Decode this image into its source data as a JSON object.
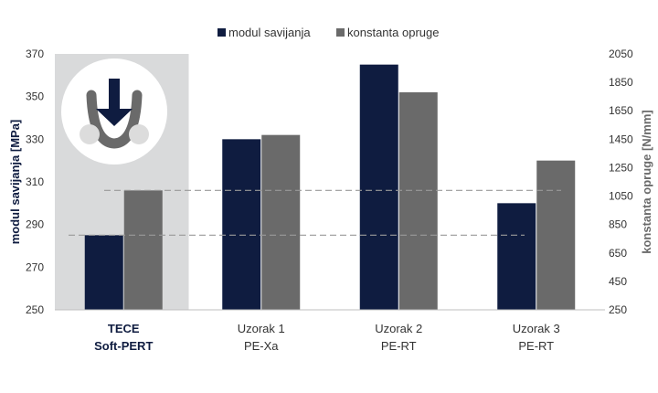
{
  "chart_data": {
    "type": "bar",
    "categories": [
      {
        "line1": "TECE",
        "line2": "Soft-PERT",
        "bold": true
      },
      {
        "line1": "Uzorak 1",
        "line2": "PE-Xa",
        "bold": false
      },
      {
        "line1": "Uzorak 2",
        "line2": "PE-RT",
        "bold": false
      },
      {
        "line1": "Uzorak 3",
        "line2": "PE-RT",
        "bold": false
      }
    ],
    "series": [
      {
        "name": "modul savijanja",
        "axis": "left",
        "color": "#0f1c40",
        "values": [
          285,
          330,
          365,
          300
        ]
      },
      {
        "name": "konstanta opruge",
        "axis": "right",
        "color": "#6a6a6a",
        "values": [
          1090,
          1480,
          1780,
          1300
        ]
      }
    ],
    "left_axis": {
      "label": "modul savijanja [MPa]",
      "ylim": [
        250,
        370
      ],
      "ticks": [
        250,
        270,
        290,
        310,
        330,
        350,
        370
      ]
    },
    "right_axis": {
      "label": "konstanta opruge [N/mm]",
      "ylim": [
        250,
        2050
      ],
      "ticks": [
        250,
        450,
        650,
        850,
        1050,
        1250,
        1450,
        1650,
        1850,
        2050
      ]
    },
    "reference_lines": [
      {
        "axis": "left",
        "value": 285,
        "style": "dashed",
        "color": "#999999"
      },
      {
        "axis": "right",
        "value": 1090,
        "style": "dashed",
        "color": "#999999"
      }
    ],
    "highlight": {
      "category_index": 0,
      "color": "#d9dadb"
    },
    "legend": {
      "position": "top-center"
    },
    "grid": false
  }
}
